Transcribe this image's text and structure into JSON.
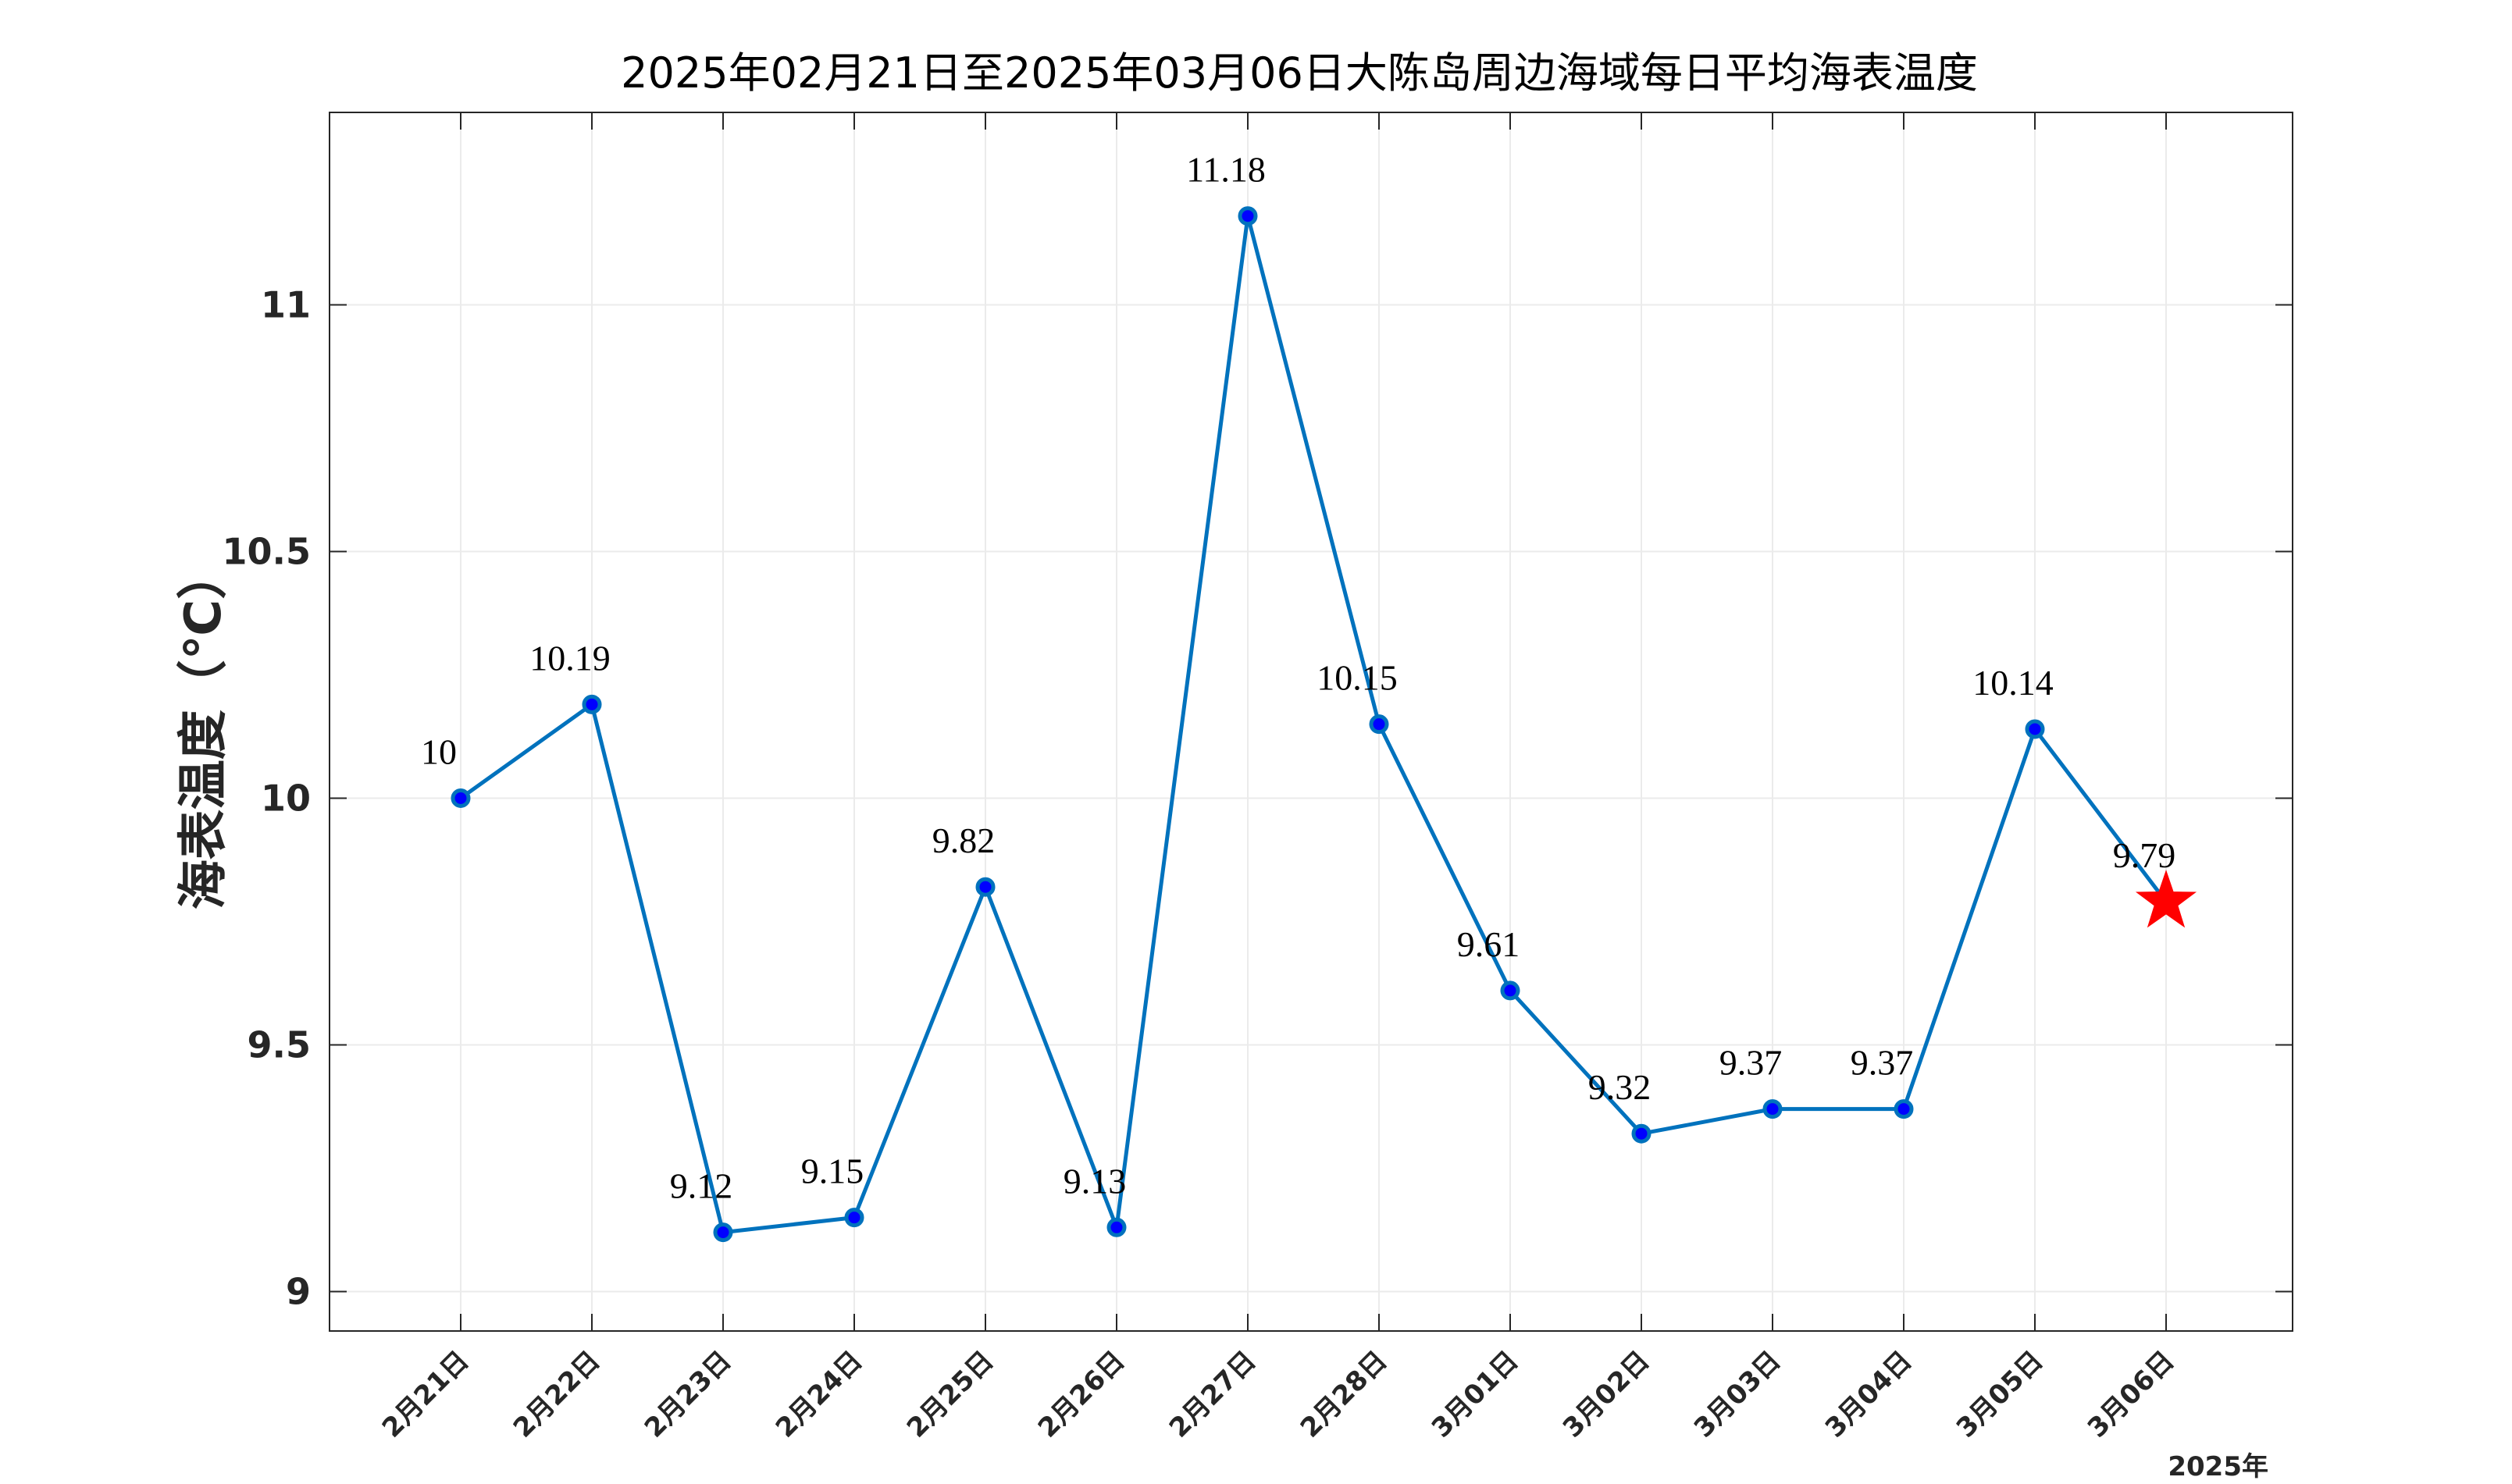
{
  "chart_data": {
    "type": "line",
    "title": "2025年02月21日至2025年03月06日大陈岛周边海域每日平均海表温度",
    "xlabel": "",
    "ylabel": "海表温度（℃）",
    "year_label": "2025年",
    "categories": [
      "2月21日",
      "2月22日",
      "2月23日",
      "2月24日",
      "2月25日",
      "2月26日",
      "2月27日",
      "2月28日",
      "3月01日",
      "3月02日",
      "3月03日",
      "3月04日",
      "3月05日",
      "3月06日"
    ],
    "values": [
      10.0,
      10.19,
      9.12,
      9.15,
      9.82,
      9.13,
      11.18,
      10.15,
      9.61,
      9.32,
      9.37,
      9.37,
      10.14,
      9.79
    ],
    "data_labels": [
      "10",
      "10.19",
      "9.12",
      "9.15",
      "9.82",
      "9.13",
      "11.18",
      "10.15",
      "9.61",
      "9.32",
      "9.37",
      "9.37",
      "10.14",
      "9.79"
    ],
    "highlight_point": {
      "category": "3月06日",
      "value": 9.79,
      "marker": "star",
      "color": "#ff0000"
    },
    "ylim": [
      8.92,
      11.39
    ],
    "yticks": [
      9,
      9.5,
      10,
      10.5,
      11
    ],
    "ytick_labels": [
      "9",
      "9.5",
      "10",
      "10.5",
      "11"
    ],
    "grid": true,
    "colors": {
      "line": "#0072bd",
      "marker_fill": "#0000ff",
      "marker_edge": "#0072bd",
      "star": "#ff0000",
      "grid": "#ebebeb",
      "axes": "#262626"
    }
  }
}
